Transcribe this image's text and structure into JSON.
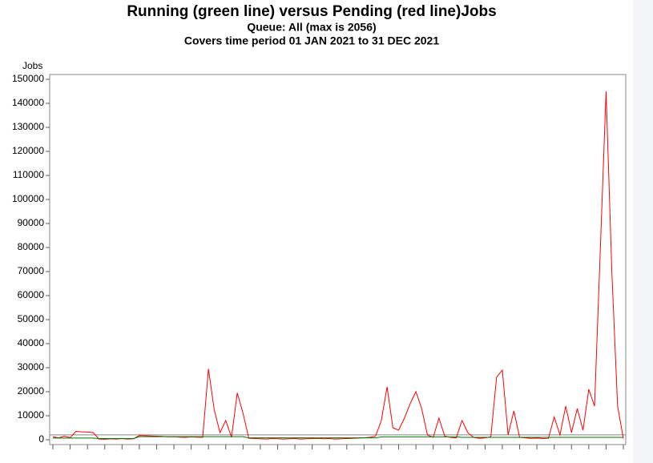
{
  "chart_data": {
    "type": "line",
    "title": "Running (green line) versus Pending (red line)Jobs",
    "subtitle": "Queue: All (max is 2056)",
    "subtitle2": "Covers time period 01 JAN 2021 to 31 DEC 2021",
    "y_label": "Jobs",
    "reference_line": 2056,
    "categories": [
      null,
      null,
      null,
      null,
      null,
      null,
      null,
      null,
      null,
      null,
      null,
      null,
      null,
      null,
      null,
      null,
      null,
      null,
      null,
      null,
      null,
      null,
      null,
      null,
      null,
      null,
      null,
      null,
      null,
      null,
      null,
      null,
      null,
      null,
      null,
      null,
      null,
      null,
      null,
      null,
      null,
      null,
      null,
      null,
      null,
      null,
      null,
      null,
      null,
      null,
      null,
      null,
      null,
      null,
      null,
      null,
      null,
      null,
      null,
      null,
      null,
      null,
      null,
      null,
      null,
      null,
      null,
      null,
      null,
      null,
      null,
      null,
      null,
      null,
      null,
      null,
      null,
      null,
      null,
      null,
      null,
      null,
      null,
      null,
      null,
      null,
      null,
      null,
      null,
      null,
      null,
      null,
      null,
      null,
      null,
      null,
      null,
      null,
      null,
      null
    ],
    "series": [
      {
        "name": "Pending",
        "color": "#ff0000",
        "values": [
          1200,
          800,
          1500,
          900,
          3500,
          3300,
          3200,
          3000,
          300,
          200,
          400,
          300,
          500,
          300,
          400,
          1800,
          1700,
          1600,
          1500,
          1400,
          1200,
          1300,
          1100,
          1000,
          1200,
          1100,
          1000,
          29500,
          12500,
          3000,
          8000,
          1000,
          19500,
          11000,
          600,
          500,
          400,
          300,
          500,
          400,
          300,
          400,
          500,
          300,
          400,
          500,
          600,
          400,
          500,
          300,
          400,
          500,
          600,
          700,
          800,
          1000,
          1500,
          8000,
          22000,
          5000,
          4000,
          9000,
          15000,
          20000,
          13000,
          2000,
          1000,
          9000,
          1500,
          1000,
          800,
          8000,
          3000,
          1000,
          600,
          800,
          1200,
          26000,
          29000,
          2000,
          12000,
          1000,
          800,
          600,
          700,
          500,
          600,
          9500,
          2000,
          14000,
          3000,
          13000,
          4000,
          21000,
          14000,
          79000,
          145000,
          70000,
          14000,
          500
        ]
      },
      {
        "name": "Running",
        "color": "#007000",
        "values": [
          700,
          700,
          700,
          700,
          700,
          700,
          700,
          700,
          500,
          500,
          500,
          500,
          500,
          500,
          500,
          1300,
          1300,
          1300,
          1300,
          1300,
          1300,
          1300,
          1300,
          1300,
          1300,
          1300,
          1300,
          1300,
          1300,
          1300,
          1300,
          1300,
          1300,
          1300,
          800,
          800,
          800,
          800,
          800,
          800,
          800,
          800,
          800,
          800,
          800,
          800,
          800,
          800,
          800,
          800,
          800,
          800,
          800,
          800,
          800,
          800,
          800,
          1200,
          1200,
          1200,
          1200,
          1200,
          1200,
          1200,
          1200,
          1200,
          1200,
          1200,
          1200,
          1200,
          1200,
          1000,
          1000,
          1000,
          1000,
          1000,
          1000,
          1000,
          1000,
          1000,
          1000,
          1000,
          1000,
          1000,
          1000,
          1000,
          1000,
          1000,
          1000,
          1000,
          1000,
          1000,
          1000,
          1000,
          1000,
          1000,
          1000,
          1000,
          1000,
          1000
        ]
      }
    ],
    "ylim": [
      -2000,
      152000
    ],
    "yticks": [
      0,
      10000,
      20000,
      30000,
      40000,
      50000,
      60000,
      70000,
      80000,
      90000,
      100000,
      110000,
      120000,
      130000,
      140000,
      150000
    ]
  }
}
